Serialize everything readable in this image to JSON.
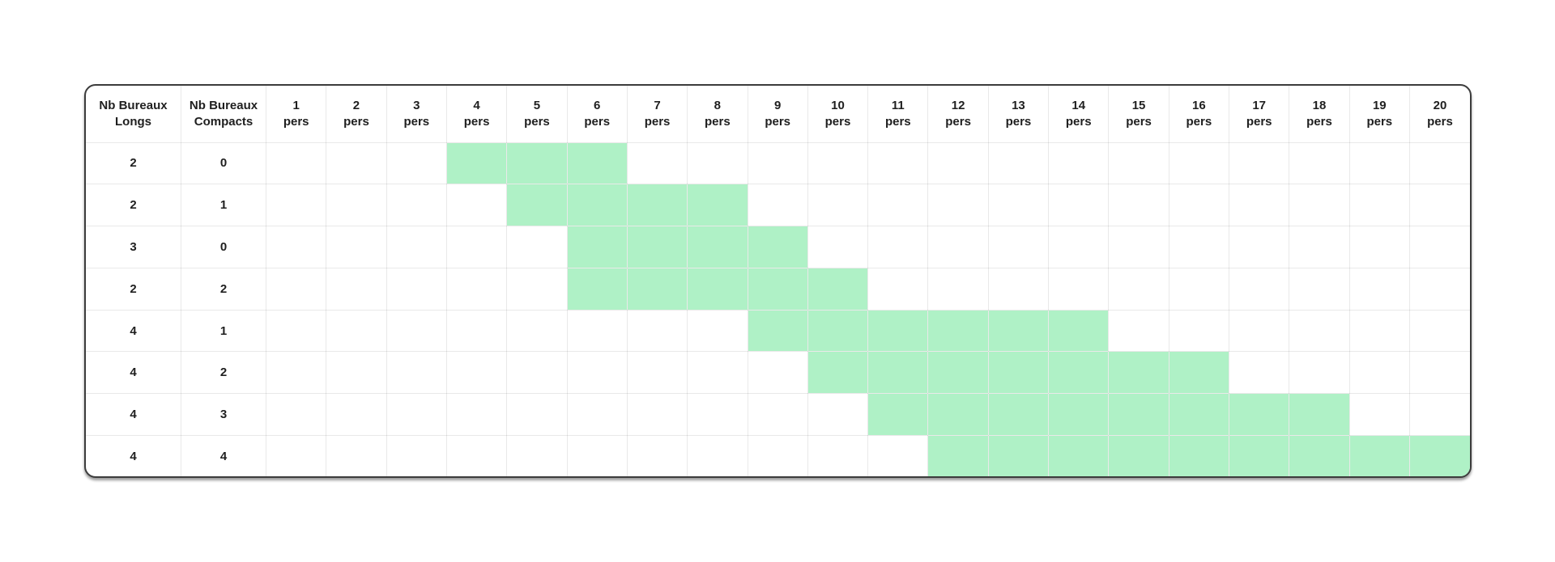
{
  "table": {
    "row_header_columns": [
      {
        "key": "longs",
        "line1": "Nb Bureaux",
        "line2": "Longs"
      },
      {
        "key": "compacts",
        "line1": "Nb Bureaux",
        "line2": "Compacts"
      }
    ],
    "pers_unit": "pers",
    "pers_columns": [
      "1",
      "2",
      "3",
      "4",
      "5",
      "6",
      "7",
      "8",
      "9",
      "10",
      "11",
      "12",
      "13",
      "14",
      "15",
      "16",
      "17",
      "18",
      "19",
      "20"
    ],
    "rows": [
      {
        "longs": "2",
        "compacts": "0",
        "highlight_from": 4,
        "highlight_to": 6
      },
      {
        "longs": "2",
        "compacts": "1",
        "highlight_from": 5,
        "highlight_to": 8
      },
      {
        "longs": "3",
        "compacts": "0",
        "highlight_from": 6,
        "highlight_to": 9
      },
      {
        "longs": "2",
        "compacts": "2",
        "highlight_from": 6,
        "highlight_to": 10
      },
      {
        "longs": "4",
        "compacts": "1",
        "highlight_from": 9,
        "highlight_to": 14
      },
      {
        "longs": "4",
        "compacts": "2",
        "highlight_from": 10,
        "highlight_to": 16
      },
      {
        "longs": "4",
        "compacts": "3",
        "highlight_from": 11,
        "highlight_to": 18
      },
      {
        "longs": "4",
        "compacts": "4",
        "highlight_from": 12,
        "highlight_to": 20
      }
    ],
    "colors": {
      "highlight": "#aff1c6",
      "gridline": "#e8e8e8",
      "text": "#1f1f1f",
      "card_border": "#3c3c3c",
      "background": "#ffffff"
    }
  },
  "chart_data": {
    "type": "table",
    "title": "",
    "columns": [
      "Nb Bureaux Longs",
      "Nb Bureaux Compacts",
      "1 pers",
      "2 pers",
      "3 pers",
      "4 pers",
      "5 pers",
      "6 pers",
      "7 pers",
      "8 pers",
      "9 pers",
      "10 pers",
      "11 pers",
      "12 pers",
      "13 pers",
      "14 pers",
      "15 pers",
      "16 pers",
      "17 pers",
      "18 pers",
      "19 pers",
      "20 pers"
    ],
    "rows": [
      {
        "nb_bureaux_longs": 2,
        "nb_bureaux_compacts": 0,
        "highlighted_pers": [
          4,
          5,
          6
        ]
      },
      {
        "nb_bureaux_longs": 2,
        "nb_bureaux_compacts": 1,
        "highlighted_pers": [
          5,
          6,
          7,
          8
        ]
      },
      {
        "nb_bureaux_longs": 3,
        "nb_bureaux_compacts": 0,
        "highlighted_pers": [
          6,
          7,
          8,
          9
        ]
      },
      {
        "nb_bureaux_longs": 2,
        "nb_bureaux_compacts": 2,
        "highlighted_pers": [
          6,
          7,
          8,
          9,
          10
        ]
      },
      {
        "nb_bureaux_longs": 4,
        "nb_bureaux_compacts": 1,
        "highlighted_pers": [
          9,
          10,
          11,
          12,
          13,
          14
        ]
      },
      {
        "nb_bureaux_longs": 4,
        "nb_bureaux_compacts": 2,
        "highlighted_pers": [
          10,
          11,
          12,
          13,
          14,
          15,
          16
        ]
      },
      {
        "nb_bureaux_longs": 4,
        "nb_bureaux_compacts": 3,
        "highlighted_pers": [
          11,
          12,
          13,
          14,
          15,
          16,
          17,
          18
        ]
      },
      {
        "nb_bureaux_longs": 4,
        "nb_bureaux_compacts": 4,
        "highlighted_pers": [
          12,
          13,
          14,
          15,
          16,
          17,
          18,
          19,
          20
        ]
      }
    ],
    "highlight_color": "#aff1c6",
    "grid": true,
    "legend_position": "none"
  }
}
